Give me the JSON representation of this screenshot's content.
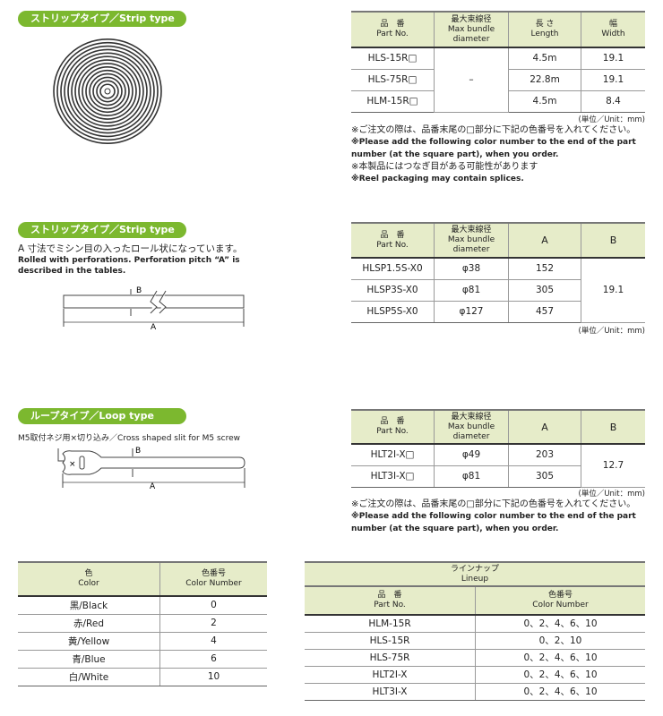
{
  "colors": {
    "accent": "#7cb82f",
    "header_bg": "#e6ecc9"
  },
  "sections": {
    "strip1": {
      "label": "ストリップタイプ／Strip type"
    },
    "strip2": {
      "label": "ストリップタイプ／Strip type",
      "desc_jp": "A 寸法でミシン目の入ったロール状になっています。",
      "desc_en1": "Rolled with perforations. Perforation pitch “A” is",
      "desc_en2": "described in the tables.",
      "dim_b": "B",
      "dim_a": "A"
    },
    "loop": {
      "label": "ループタイプ／Loop type",
      "desc": "M5取付ネジ用×切り込み／Cross shaped slit for M5 screw",
      "dim_b": "B",
      "dim_a": "A",
      "slit_mark": "×"
    }
  },
  "table1": {
    "headers": [
      [
        "品　番",
        "Part No."
      ],
      [
        "最大束線径",
        "Max bundle diameter"
      ],
      [
        "長 さ",
        "Length"
      ],
      [
        "幅",
        "Width"
      ]
    ],
    "rows": [
      [
        "HLS-15R□",
        "–",
        "4.5m",
        "19.1"
      ],
      [
        "HLS-75R□",
        "",
        "22.8m",
        "19.1"
      ],
      [
        "HLM-15R□",
        "",
        "4.5m",
        "8.4"
      ]
    ],
    "unit": "(単位／Unit：mm)",
    "notes": [
      "※ご注文の際は、品番末尾の□部分に下記の色番号を入れてください。",
      "※Please add the following color number to the end of the part number (at the square part), when you order.",
      "※本製品にはつなぎ目がある可能性があります",
      "※Reel packaging may contain splices."
    ]
  },
  "table2": {
    "headers": [
      [
        "品　番",
        "Part No."
      ],
      [
        "最大束線径",
        "Max bundle diameter"
      ],
      [
        "A",
        ""
      ],
      [
        "B",
        ""
      ]
    ],
    "rows": [
      [
        "HLSP1.5S-X0",
        "φ38",
        "152",
        "19.1"
      ],
      [
        "HLSP3S-X0",
        "φ81",
        "305",
        ""
      ],
      [
        "HLSP5S-X0",
        "φ127",
        "457",
        ""
      ]
    ],
    "unit": "(単位／Unit：mm)"
  },
  "table3": {
    "headers": [
      [
        "品　番",
        "Part No."
      ],
      [
        "最大束線径",
        "Max bundle diameter"
      ],
      [
        "A",
        ""
      ],
      [
        "B",
        ""
      ]
    ],
    "rows": [
      [
        "HLT2I-X□",
        "φ49",
        "203",
        "12.7"
      ],
      [
        "HLT3I-X□",
        "φ81",
        "305",
        ""
      ]
    ],
    "unit": "(単位／Unit：mm)",
    "notes": [
      "※ご注文の際は、品番末尾の□部分に下記の色番号を入れてください。",
      "※Please add the following color number to the end of the part number (at the square part), when you order."
    ]
  },
  "color_table": {
    "headers": [
      [
        "色",
        "Color"
      ],
      [
        "色番号",
        "Color Number"
      ]
    ],
    "rows": [
      [
        "黒/Black",
        "0"
      ],
      [
        "赤/Red",
        "2"
      ],
      [
        "黄/Yellow",
        "4"
      ],
      [
        "青/Blue",
        "6"
      ],
      [
        "白/White",
        "10"
      ]
    ]
  },
  "lineup": {
    "title": "ラインナップ",
    "title_en": "Lineup",
    "headers": [
      [
        "品　番",
        "Part No."
      ],
      [
        "色番号",
        "Color Number"
      ]
    ],
    "rows": [
      [
        "HLM-15R",
        "0、2、4、6、10"
      ],
      [
        "HLS-15R",
        "0、2、10"
      ],
      [
        "HLS-75R",
        "0、2、4、6、10"
      ],
      [
        "HLT2I-X",
        "0、2、4、6、10"
      ],
      [
        "HLT3I-X",
        "0、2、4、6、10"
      ]
    ]
  }
}
